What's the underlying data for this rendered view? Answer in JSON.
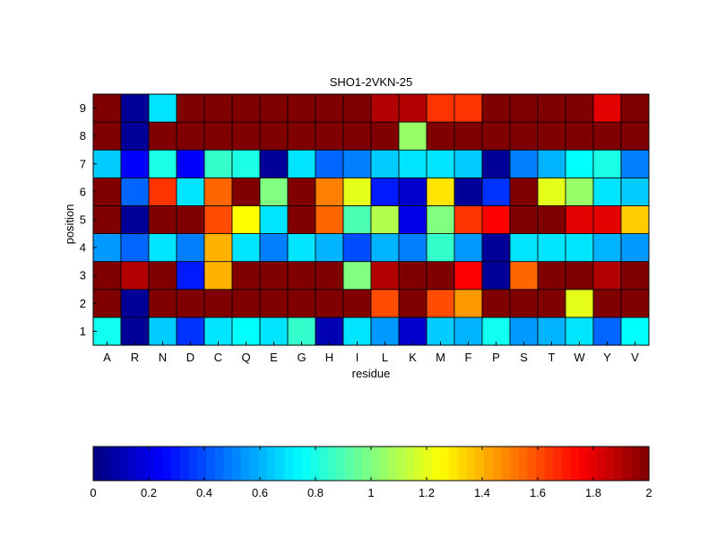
{
  "chart_data": [
    {
      "type": "heatmap",
      "title": "SHO1-2VKN-25",
      "xlabel": "residue",
      "ylabel": "position",
      "x": [
        "A",
        "R",
        "N",
        "D",
        "C",
        "Q",
        "E",
        "G",
        "H",
        "I",
        "L",
        "K",
        "M",
        "F",
        "P",
        "S",
        "T",
        "W",
        "Y",
        "V"
      ],
      "y": [
        "1",
        "2",
        "3",
        "4",
        "5",
        "6",
        "7",
        "8",
        "9"
      ],
      "zlim": [
        0,
        2
      ],
      "colormap": "jet",
      "values": [
        [
          0.78,
          0.05,
          0.65,
          0.35,
          0.7,
          0.75,
          0.7,
          0.85,
          0.1,
          0.7,
          0.55,
          0.15,
          0.65,
          0.6,
          0.78,
          0.55,
          0.6,
          0.7,
          0.45,
          0.75
        ],
        [
          2.0,
          0.05,
          2.0,
          2.0,
          2.0,
          2.0,
          2.0,
          2.0,
          2.0,
          2.0,
          1.6,
          2.0,
          1.6,
          1.45,
          2.0,
          2.0,
          2.0,
          1.2,
          2.0,
          2.0
        ],
        [
          2.0,
          1.9,
          2.0,
          0.3,
          1.4,
          2.0,
          2.0,
          2.0,
          2.0,
          1.0,
          1.9,
          2.0,
          2.0,
          1.75,
          0.05,
          1.55,
          2.0,
          2.0,
          1.9,
          2.0
        ],
        [
          0.55,
          0.45,
          0.7,
          0.5,
          1.4,
          0.7,
          0.5,
          0.7,
          0.6,
          0.4,
          0.6,
          0.5,
          0.85,
          0.55,
          0.05,
          0.7,
          0.7,
          0.7,
          0.6,
          0.55
        ],
        [
          2.0,
          0.05,
          2.0,
          2.0,
          1.6,
          1.25,
          0.7,
          2.0,
          1.55,
          0.9,
          1.1,
          0.2,
          1.0,
          1.65,
          1.75,
          2.0,
          2.0,
          1.8,
          1.8,
          1.35
        ],
        [
          2.0,
          0.45,
          1.65,
          0.7,
          1.55,
          2.0,
          1.0,
          2.0,
          1.5,
          1.2,
          0.3,
          0.15,
          1.3,
          0.05,
          0.35,
          2.0,
          1.2,
          1.05,
          0.7,
          0.65
        ],
        [
          0.65,
          0.25,
          0.8,
          0.25,
          0.85,
          0.8,
          0.05,
          0.7,
          0.45,
          0.5,
          0.65,
          0.7,
          0.7,
          0.65,
          0.05,
          0.5,
          0.6,
          0.75,
          0.8,
          0.5
        ],
        [
          2.0,
          0.05,
          2.0,
          2.0,
          2.0,
          2.0,
          2.0,
          2.0,
          2.0,
          2.0,
          2.0,
          1.05,
          2.0,
          2.0,
          2.0,
          2.0,
          2.0,
          2.0,
          2.0,
          2.0
        ],
        [
          2.0,
          0.05,
          0.7,
          2.0,
          2.0,
          2.0,
          2.0,
          2.0,
          2.0,
          2.0,
          1.9,
          1.9,
          1.65,
          1.65,
          2.0,
          2.0,
          2.0,
          2.0,
          1.8,
          2.0
        ]
      ]
    },
    {
      "type": "colorbar",
      "ticks": [
        "0",
        "0.2",
        "0.4",
        "0.6",
        "0.8",
        "1",
        "1.2",
        "1.4",
        "1.6",
        "1.8",
        "2"
      ],
      "range": [
        0,
        2
      ]
    }
  ]
}
